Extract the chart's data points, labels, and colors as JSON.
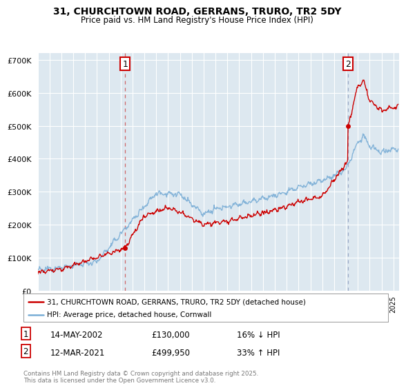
{
  "title": "31, CHURCHTOWN ROAD, GERRANS, TRURO, TR2 5DY",
  "subtitle": "Price paid vs. HM Land Registry's House Price Index (HPI)",
  "ylim": [
    0,
    720000
  ],
  "yticks": [
    0,
    100000,
    200000,
    300000,
    400000,
    500000,
    600000,
    700000
  ],
  "sale1_date_num": 2002.37,
  "sale1_label": "14-MAY-2002",
  "sale1_price": 130000,
  "sale1_note": "16% ↓ HPI",
  "sale2_date_num": 2021.19,
  "sale2_label": "12-MAR-2021",
  "sale2_price": 499950,
  "sale2_note": "33% ↑ HPI",
  "legend_red": "31, CHURCHTOWN ROAD, GERRANS, TRURO, TR2 5DY (detached house)",
  "legend_blue": "HPI: Average price, detached house, Cornwall",
  "copyright": "Contains HM Land Registry data © Crown copyright and database right 2025.\nThis data is licensed under the Open Government Licence v3.0.",
  "red_color": "#cc0000",
  "blue_color": "#7aaed6",
  "dashed_color": "#cc0000",
  "bg_chart": "#dde8f0",
  "background_color": "#ffffff",
  "grid_color": "#ffffff",
  "annotation_box_color": "#cc0000",
  "xmin": 1995,
  "xmax": 2025.5
}
